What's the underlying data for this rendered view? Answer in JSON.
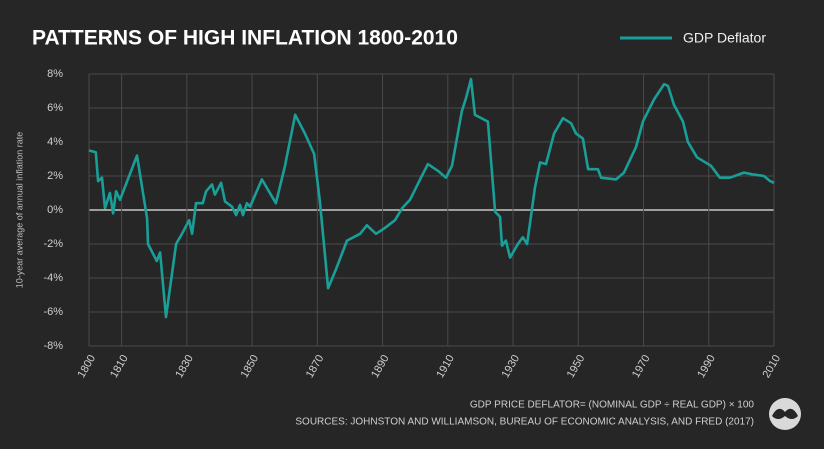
{
  "chart_data": {
    "type": "line",
    "title": "PATTERNS OF HIGH INFLATION 1800-2010",
    "y_label": "10-year average of annual inflation rate",
    "annotations": [
      "GDP PRICE DEFLATOR= (NOMINAL GDP ÷ REAL GDP) × 100",
      "SOURCES: JOHNSTON AND WILLIAMSON, BUREAU OF ECONOMIC ANALYSIS, AND FRED (2017)"
    ],
    "legend_position": "top-right",
    "grid": true,
    "xlim": [
      1800,
      2010
    ],
    "xticks": [
      1800,
      1810,
      1830,
      1850,
      1870,
      1890,
      1910,
      1930,
      1950,
      1970,
      1990,
      2010
    ],
    "ylim": [
      -8,
      8
    ],
    "yticks": [
      {
        "value": -8,
        "label": "-8%"
      },
      {
        "value": -6,
        "label": "-6%"
      },
      {
        "value": -4,
        "label": "-4%"
      },
      {
        "value": -2,
        "label": "-2%"
      },
      {
        "value": 0,
        "label": "0%"
      },
      {
        "value": 2,
        "label": "2%"
      },
      {
        "value": 4,
        "label": "4%"
      },
      {
        "value": 6,
        "label": "6%"
      },
      {
        "value": 8,
        "label": "8%"
      }
    ],
    "x": [
      1800,
      1802.1,
      1802.8,
      1804,
      1804.9,
      1806.4,
      1807.4,
      1808.3,
      1809.5,
      1814.7,
      1817.8,
      1818.1,
      1820.8,
      1821.8,
      1823.6,
      1826.7,
      1828.5,
      1830.7,
      1831.6,
      1832.8,
      1834.9,
      1835.9,
      1837.7,
      1838.6,
      1840.5,
      1841.7,
      1843.8,
      1845.1,
      1846.3,
      1847.2,
      1848.4,
      1849.4,
      1853,
      1857.3,
      1860.1,
      1863.2,
      1866.2,
      1869,
      1870.8,
      1873.3,
      1875.7,
      1879.1,
      1883.1,
      1885.2,
      1888,
      1890.4,
      1893.8,
      1896,
      1898.4,
      1901.5,
      1903.9,
      1907,
      1909.4,
      1911.3,
      1914.3,
      1915.6,
      1917.1,
      1918.3,
      1922.3,
      1924.5,
      1926,
      1926.6,
      1927.8,
      1929.1,
      1931.5,
      1933,
      1934.3,
      1936.7,
      1938.3,
      1940.1,
      1942.6,
      1945.3,
      1947.8,
      1949.3,
      1951.4,
      1953,
      1956,
      1957,
      1961.6,
      1964,
      1967.7,
      1969.8,
      1973.2,
      1976.3,
      1977.5,
      1979.3,
      1982.1,
      1983.6,
      1986.4,
      1990.7,
      1993.4,
      1996.5,
      2000.8,
      2003.3,
      2006.9,
      2008.8,
      2010
    ],
    "series": [
      {
        "name": "GDP Deflator",
        "color": "#1a9e98",
        "values": [
          3.5,
          3.4,
          1.7,
          1.9,
          0.1,
          1.0,
          -0.2,
          1.1,
          0.6,
          3.2,
          -0.5,
          -2.0,
          -3.0,
          -2.5,
          -6.3,
          -2.0,
          -1.4,
          -0.6,
          -1.4,
          0.4,
          0.4,
          1.1,
          1.5,
          0.9,
          1.6,
          0.5,
          0.2,
          -0.3,
          0.3,
          -0.3,
          0.4,
          0.2,
          1.8,
          0.4,
          2.6,
          5.6,
          4.5,
          3.3,
          0.5,
          -4.6,
          -3.5,
          -1.8,
          -1.4,
          -0.9,
          -1.4,
          -1.1,
          -0.6,
          0.1,
          0.6,
          1.8,
          2.7,
          2.3,
          1.9,
          2.6,
          5.8,
          6.6,
          7.7,
          5.6,
          5.2,
          -0.1,
          -0.4,
          -2.1,
          -1.8,
          -2.8,
          -2.0,
          -1.6,
          -2.0,
          1.3,
          2.8,
          2.7,
          4.5,
          5.4,
          5.1,
          4.5,
          4.2,
          2.4,
          2.4,
          1.9,
          1.8,
          2.2,
          3.7,
          5.2,
          6.5,
          7.4,
          7.3,
          6.2,
          5.2,
          4.0,
          3.1,
          2.6,
          1.9,
          1.9,
          2.2,
          2.1,
          2.0,
          1.7,
          1.6
        ]
      }
    ]
  }
}
